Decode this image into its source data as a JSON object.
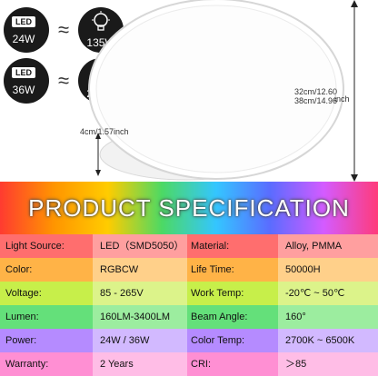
{
  "equivalents": [
    {
      "led_label": "LED",
      "led_watt": "24W",
      "approx": "≈",
      "bulb_watt": "135W"
    },
    {
      "led_label": "LED",
      "led_watt": "36W",
      "approx": "≈",
      "bulb_watt": "200W"
    }
  ],
  "dimensions": {
    "diameter": "32cm/12.60\n38cm/14.96",
    "diameter_unit": "inch",
    "height": "4cm/1.57inch"
  },
  "spec_title": "PRODUCT SPECIFICATION",
  "specs": [
    {
      "k1": "Light Source:",
      "v1": "LED（SMD5050）",
      "k2": "Material:",
      "v2": "Alloy, PMMA",
      "colors": [
        "#ff6e6e",
        "#ff9f9f",
        "#ff6e6e",
        "#ff9f9f"
      ]
    },
    {
      "k1": "Color:",
      "v1": "RGBCW",
      "k2": "Life Time:",
      "v2": "50000H",
      "colors": [
        "#ffb347",
        "#ffd08a",
        "#ffb347",
        "#ffd08a"
      ]
    },
    {
      "k1": "Voltage:",
      "v1": "85 - 265V",
      "k2": "Work Temp:",
      "v2": "-20℃ ~ 50℃",
      "colors": [
        "#c7ef4a",
        "#dcf38a",
        "#c7ef4a",
        "#dcf38a"
      ]
    },
    {
      "k1": "Lumen:",
      "v1": "160LM-3400LM",
      "k2": "Beam Angle:",
      "v2": "160°",
      "colors": [
        "#64e07a",
        "#9ced9f",
        "#64e07a",
        "#9ced9f"
      ]
    },
    {
      "k1": "Power:",
      "v1": "24W / 36W",
      "k2": "Color Temp:",
      "v2": "2700K ~ 6500K",
      "colors": [
        "#b58bff",
        "#d2b9ff",
        "#b58bff",
        "#d2b9ff"
      ]
    },
    {
      "k1": "Warranty:",
      "v1": "2 Years",
      "k2": "CRI:",
      "v2": "＞85",
      "colors": [
        "#ff8fd3",
        "#ffbde6",
        "#ff8fd3",
        "#ffbde6"
      ]
    }
  ]
}
